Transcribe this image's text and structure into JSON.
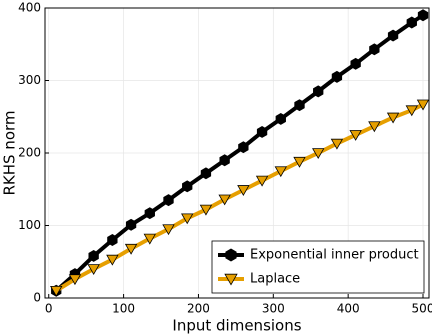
{
  "chart_data": {
    "type": "line",
    "x_label": "Input dimensions",
    "y_label": "RKHS norm",
    "x": [
      10,
      35,
      60,
      85,
      110,
      135,
      160,
      185,
      210,
      235,
      260,
      285,
      310,
      335,
      360,
      385,
      410,
      435,
      460,
      485,
      500
    ],
    "series": [
      {
        "name": "Exponential inner product",
        "color": "#000000",
        "marker": "hexagon",
        "values": [
          10,
          33,
          58,
          80,
          101,
          117,
          135,
          154,
          172,
          190,
          208,
          229,
          247,
          266,
          285,
          305,
          323,
          343,
          362,
          380,
          390
        ]
      },
      {
        "name": "Laplace",
        "color": "#e69f00",
        "marker": "triangle-down",
        "values": [
          10,
          26,
          40,
          53,
          68,
          82,
          95,
          110,
          122,
          136,
          149,
          162,
          175,
          188,
          200,
          213,
          225,
          237,
          249,
          259,
          267
        ]
      }
    ],
    "xlim": [
      -5,
      508
    ],
    "ylim": [
      0,
      400
    ],
    "xticks": [
      0,
      100,
      200,
      300,
      400,
      500
    ],
    "yticks": [
      0,
      100,
      200,
      300,
      400
    ],
    "grid": true,
    "legend": "lower right"
  }
}
